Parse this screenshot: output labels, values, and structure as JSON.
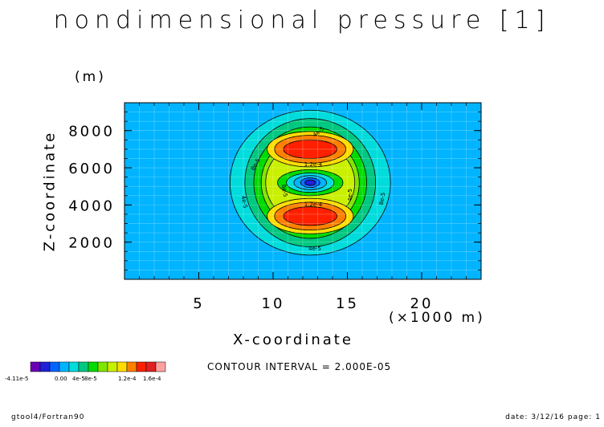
{
  "chart_data": {
    "type": "heatmap",
    "title": "nondimensional pressure [1]",
    "xlabel": "X-coordinate",
    "ylabel": "Z-coordinate",
    "x_unit": "(×1000 m)",
    "y_unit": "(m)",
    "xlim": [
      0,
      24
    ],
    "ylim": [
      0,
      9500
    ],
    "x_ticks": [
      5,
      10,
      15,
      20
    ],
    "y_ticks": [
      2000,
      4000,
      6000,
      8000
    ],
    "grid": true,
    "contour_interval": "CONTOUR INTERVAL = 2.000E-05",
    "contour_labels": [
      "4e-5",
      "8e-5",
      "1.2e-4",
      "1.2e-4",
      "4e-5",
      "8e-5",
      "4e-5",
      "8e-5",
      "4e-5"
    ],
    "colorbar": {
      "ticks": [
        "-4.11e-5",
        "0.00",
        "4e-5",
        "8e-5",
        "1.2e-4",
        "1.6e-4"
      ],
      "colors": [
        "#6a00b5",
        "#2020d8",
        "#0064ff",
        "#00b4ff",
        "#00dcdc",
        "#00c880",
        "#00dc00",
        "#80e600",
        "#c8f000",
        "#ffdc00",
        "#ff8000",
        "#ff2000",
        "#e02020",
        "#ffa0a0"
      ]
    },
    "field": {
      "center_x": 12.5,
      "center_z": 5200,
      "fill_outside": "#00b4ff",
      "levels": [
        {
          "value": 0.0,
          "color": "#00dcdc",
          "rx_km": 5.4,
          "rz_m": 3900
        },
        {
          "value": 2e-05,
          "color": "#00c880",
          "rx_km": 4.4,
          "rz_m": 3450
        },
        {
          "value": 4e-05,
          "color": "#00dc00",
          "rx_km": 3.8,
          "rz_m": 3000
        },
        {
          "value": 6e-05,
          "color": "#80e600",
          "rx_km": 3.3,
          "rz_m": 2550
        },
        {
          "value": 8e-05,
          "color": "#c8f000",
          "rx_km": 3.0,
          "rz_m": 2200
        }
      ],
      "lobes": [
        {
          "z_m": 7000,
          "layers": [
            {
              "color": "#ffdc00",
              "rx_km": 2.9,
              "rz_m": 950
            },
            {
              "color": "#ff8000",
              "rx_km": 2.4,
              "rz_m": 750
            },
            {
              "color": "#ff2000",
              "rx_km": 1.8,
              "rz_m": 500
            }
          ]
        },
        {
          "z_m": 3400,
          "layers": [
            {
              "color": "#ffdc00",
              "rx_km": 2.9,
              "rz_m": 950
            },
            {
              "color": "#ff8000",
              "rx_km": 2.4,
              "rz_m": 750
            },
            {
              "color": "#ff2000",
              "rx_km": 1.8,
              "rz_m": 500
            }
          ]
        }
      ],
      "core": [
        {
          "color": "#00dc00",
          "rx_km": 2.2,
          "rz_m": 700
        },
        {
          "color": "#00dcdc",
          "rx_km": 1.6,
          "rz_m": 520
        },
        {
          "color": "#00b4ff",
          "rx_km": 1.1,
          "rz_m": 380
        },
        {
          "color": "#0064ff",
          "rx_km": 0.65,
          "rz_m": 260
        },
        {
          "color": "#2020d8",
          "rx_km": 0.35,
          "rz_m": 150
        }
      ]
    }
  },
  "footer": {
    "left": "gtool4/Fortran90",
    "right": "date: 3/12/16 page: 1"
  }
}
